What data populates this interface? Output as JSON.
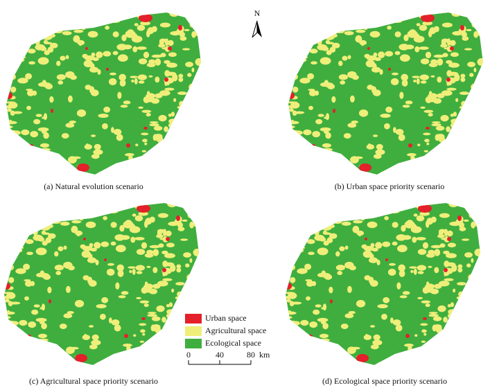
{
  "north_arrow": {
    "label": "N"
  },
  "panels": [
    {
      "caption": "(a)  Natural evolution scenario"
    },
    {
      "caption": "(b)  Urban space priority scenario"
    },
    {
      "caption": "(c)  Agricultural space priority scenario"
    },
    {
      "caption": "(d)  Ecological space priority scenario"
    }
  ],
  "legend": {
    "items": [
      {
        "label": "Urban space",
        "color": "#e4202a"
      },
      {
        "label": "Agricultural space",
        "color": "#f0ee7a"
      },
      {
        "label": "Ecological space",
        "color": "#3fae3f"
      }
    ]
  },
  "scale_bar": {
    "ticks": [
      0,
      40,
      80
    ],
    "unit": "km"
  }
}
